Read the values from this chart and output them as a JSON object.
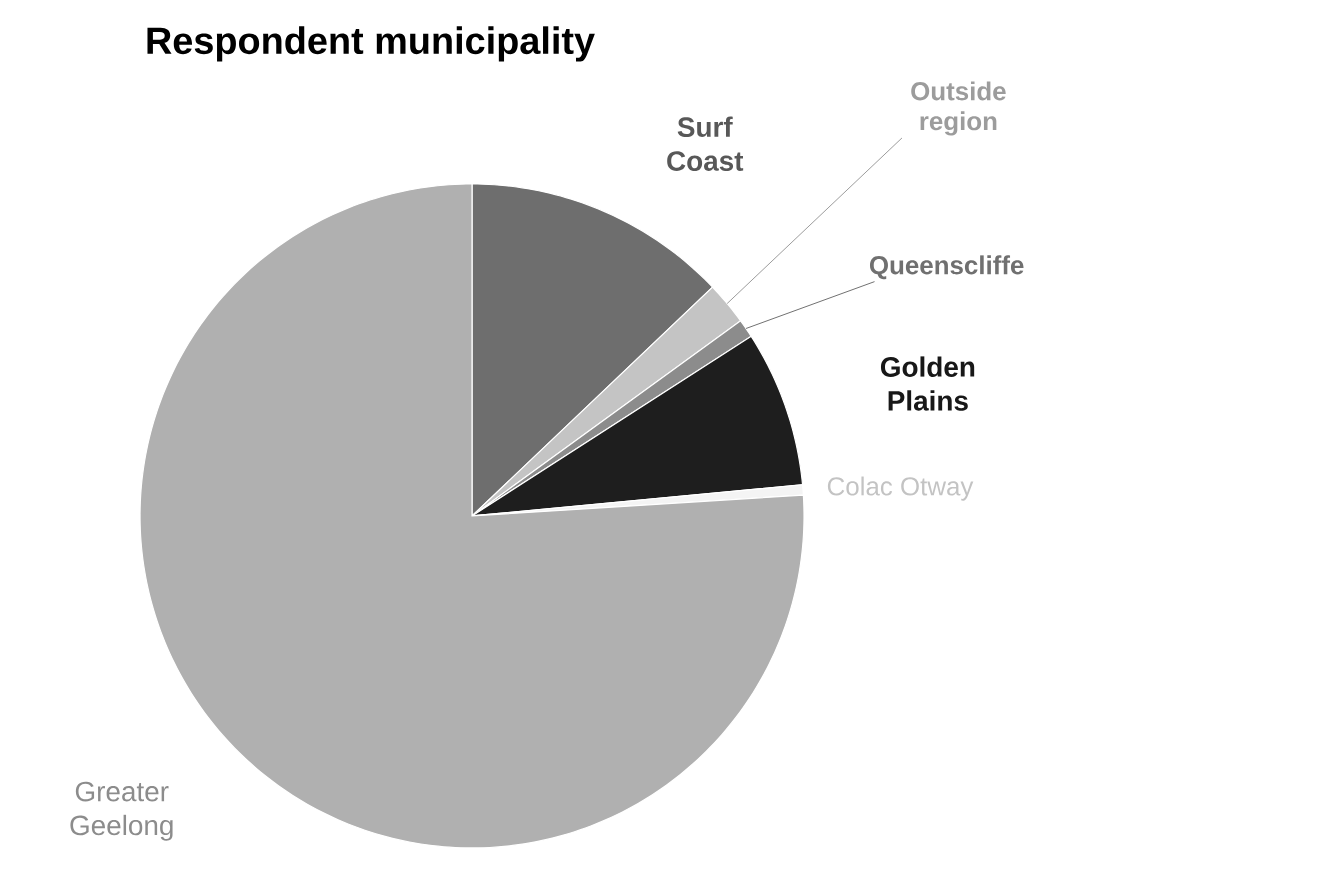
{
  "chart_data": {
    "type": "pie",
    "title": "Respondent municipality",
    "categories": [
      "Surf Coast",
      "Outside region",
      "Queenscliffe",
      "Golden Plains",
      "Colac Otway",
      "Greater Geelong"
    ],
    "values": [
      12.9,
      2.1,
      0.9,
      7.6,
      0.5,
      76.0
    ],
    "colors": [
      "#6e6e6e",
      "#c4c4c4",
      "#8c8c8c",
      "#1e1e1e",
      "#f4f4f4",
      "#b0b0b0"
    ]
  }
}
